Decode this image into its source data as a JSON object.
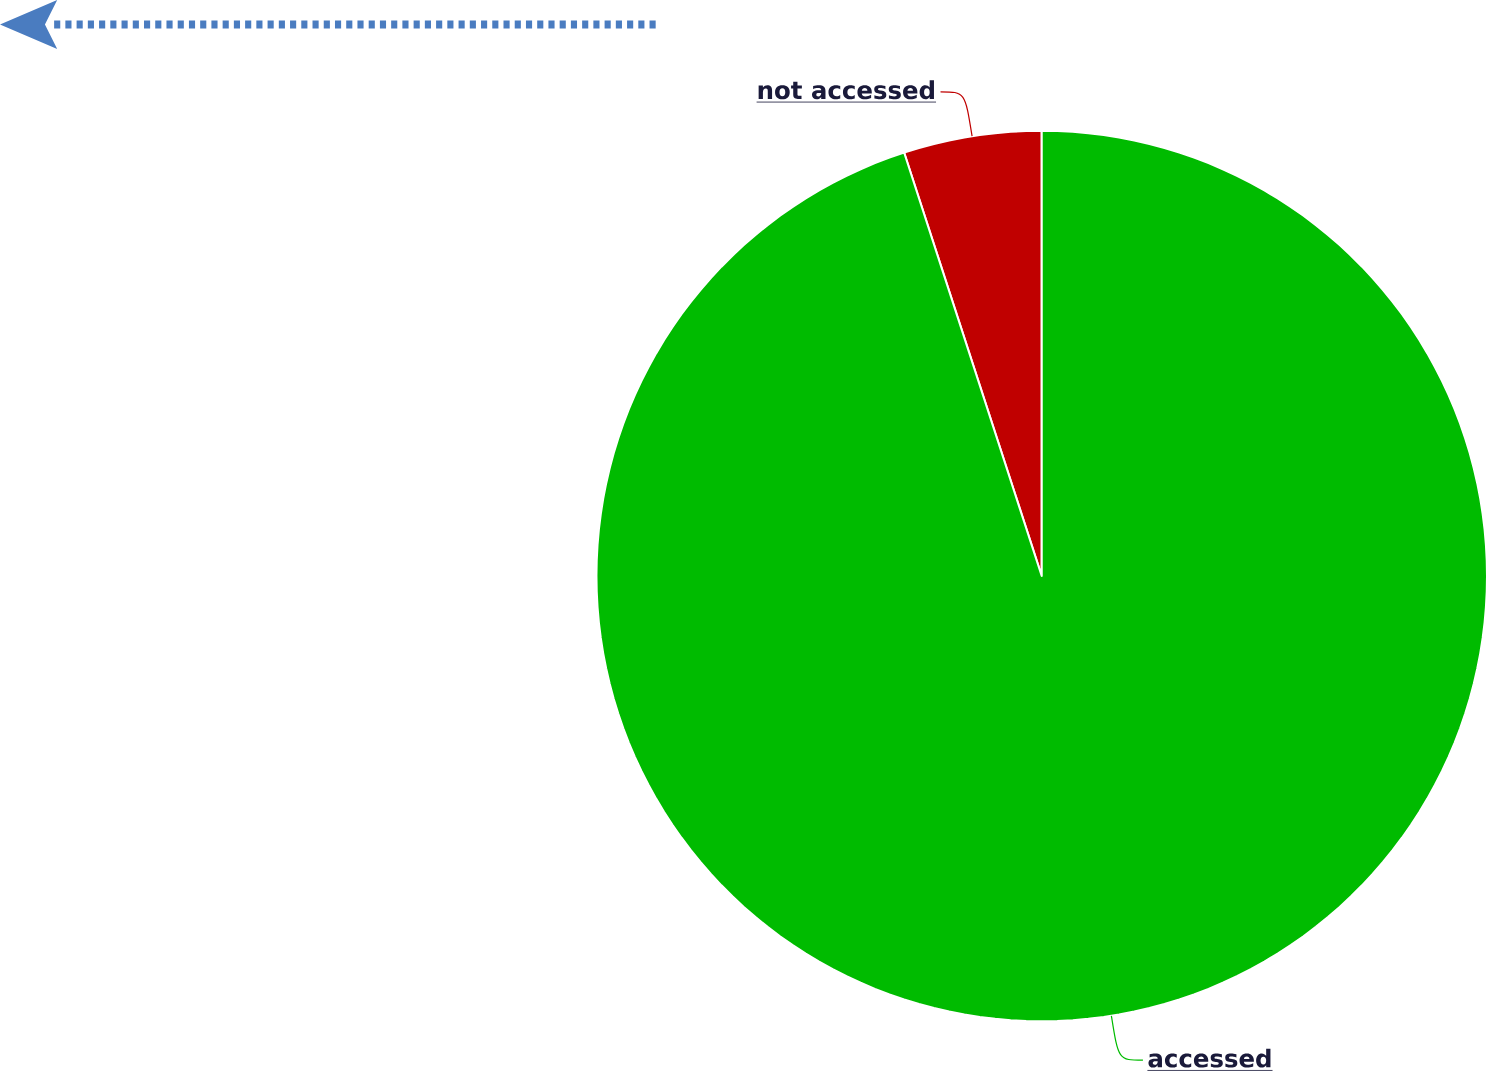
{
  "chart_data": {
    "type": "pie",
    "categories": [
      "not accessed",
      "accessed"
    ],
    "values": [
      5,
      95
    ],
    "colors": [
      "#c00000",
      "#00bb00"
    ]
  }
}
